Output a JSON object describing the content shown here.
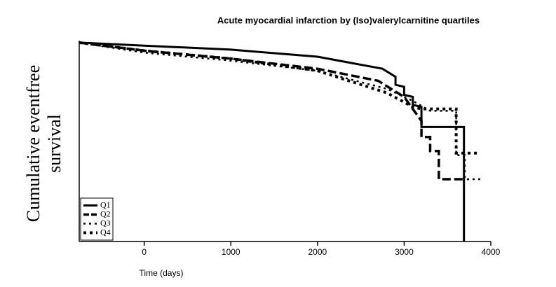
{
  "chart_data": {
    "type": "line",
    "title": "Acute myocardial infarction by (Iso)valerylcarnitine quartiles",
    "x_label": "Time (days)",
    "y_label": [
      "Cumulative eventfree",
      "survival"
    ],
    "xlim": [
      -750,
      4000
    ],
    "xticks": [
      0,
      1000,
      2000,
      3000,
      4000
    ],
    "ylim": [
      0,
      1
    ],
    "legend": "lower left",
    "series": [
      {
        "name": "Q1",
        "color": "#000000",
        "style": "solid",
        "x": [
          -750,
          0,
          1000,
          2000,
          2750,
          2900,
          2900,
          3000,
          3000,
          3100,
          3100,
          3200,
          3200,
          3690,
          3690
        ],
        "values": [
          0.99,
          0.975,
          0.955,
          0.92,
          0.86,
          0.82,
          0.78,
          0.77,
          0.73,
          0.72,
          0.68,
          0.67,
          0.57,
          0.57,
          0
        ]
      },
      {
        "name": "Q2",
        "color": "#000000",
        "style": "dashed",
        "x": [
          -750,
          0,
          1000,
          2000,
          2700,
          3000,
          3200,
          3200,
          3300,
          3300,
          3400,
          3400,
          3690
        ],
        "values": [
          0.99,
          0.95,
          0.91,
          0.86,
          0.8,
          0.72,
          0.6,
          0.52,
          0.52,
          0.45,
          0.45,
          0.31,
          0.31
        ]
      },
      {
        "name": "Q3",
        "color": "#000000",
        "style": "dotted",
        "x": [
          -750,
          0,
          1000,
          2000,
          2800,
          3100,
          3300,
          3600,
          3600,
          3700,
          3700,
          3900
        ],
        "values": [
          0.99,
          0.94,
          0.9,
          0.85,
          0.76,
          0.7,
          0.65,
          0.65,
          0.43,
          0.43,
          0.31,
          0.31
        ]
      },
      {
        "name": "Q4",
        "color": "#000000",
        "style": "square-dots",
        "x": [
          -750,
          0,
          1000,
          2000,
          2800,
          3100,
          3200,
          3600,
          3600,
          3850
        ],
        "values": [
          0.99,
          0.95,
          0.91,
          0.85,
          0.74,
          0.67,
          0.66,
          0.66,
          0.44,
          0.44
        ]
      }
    ]
  }
}
